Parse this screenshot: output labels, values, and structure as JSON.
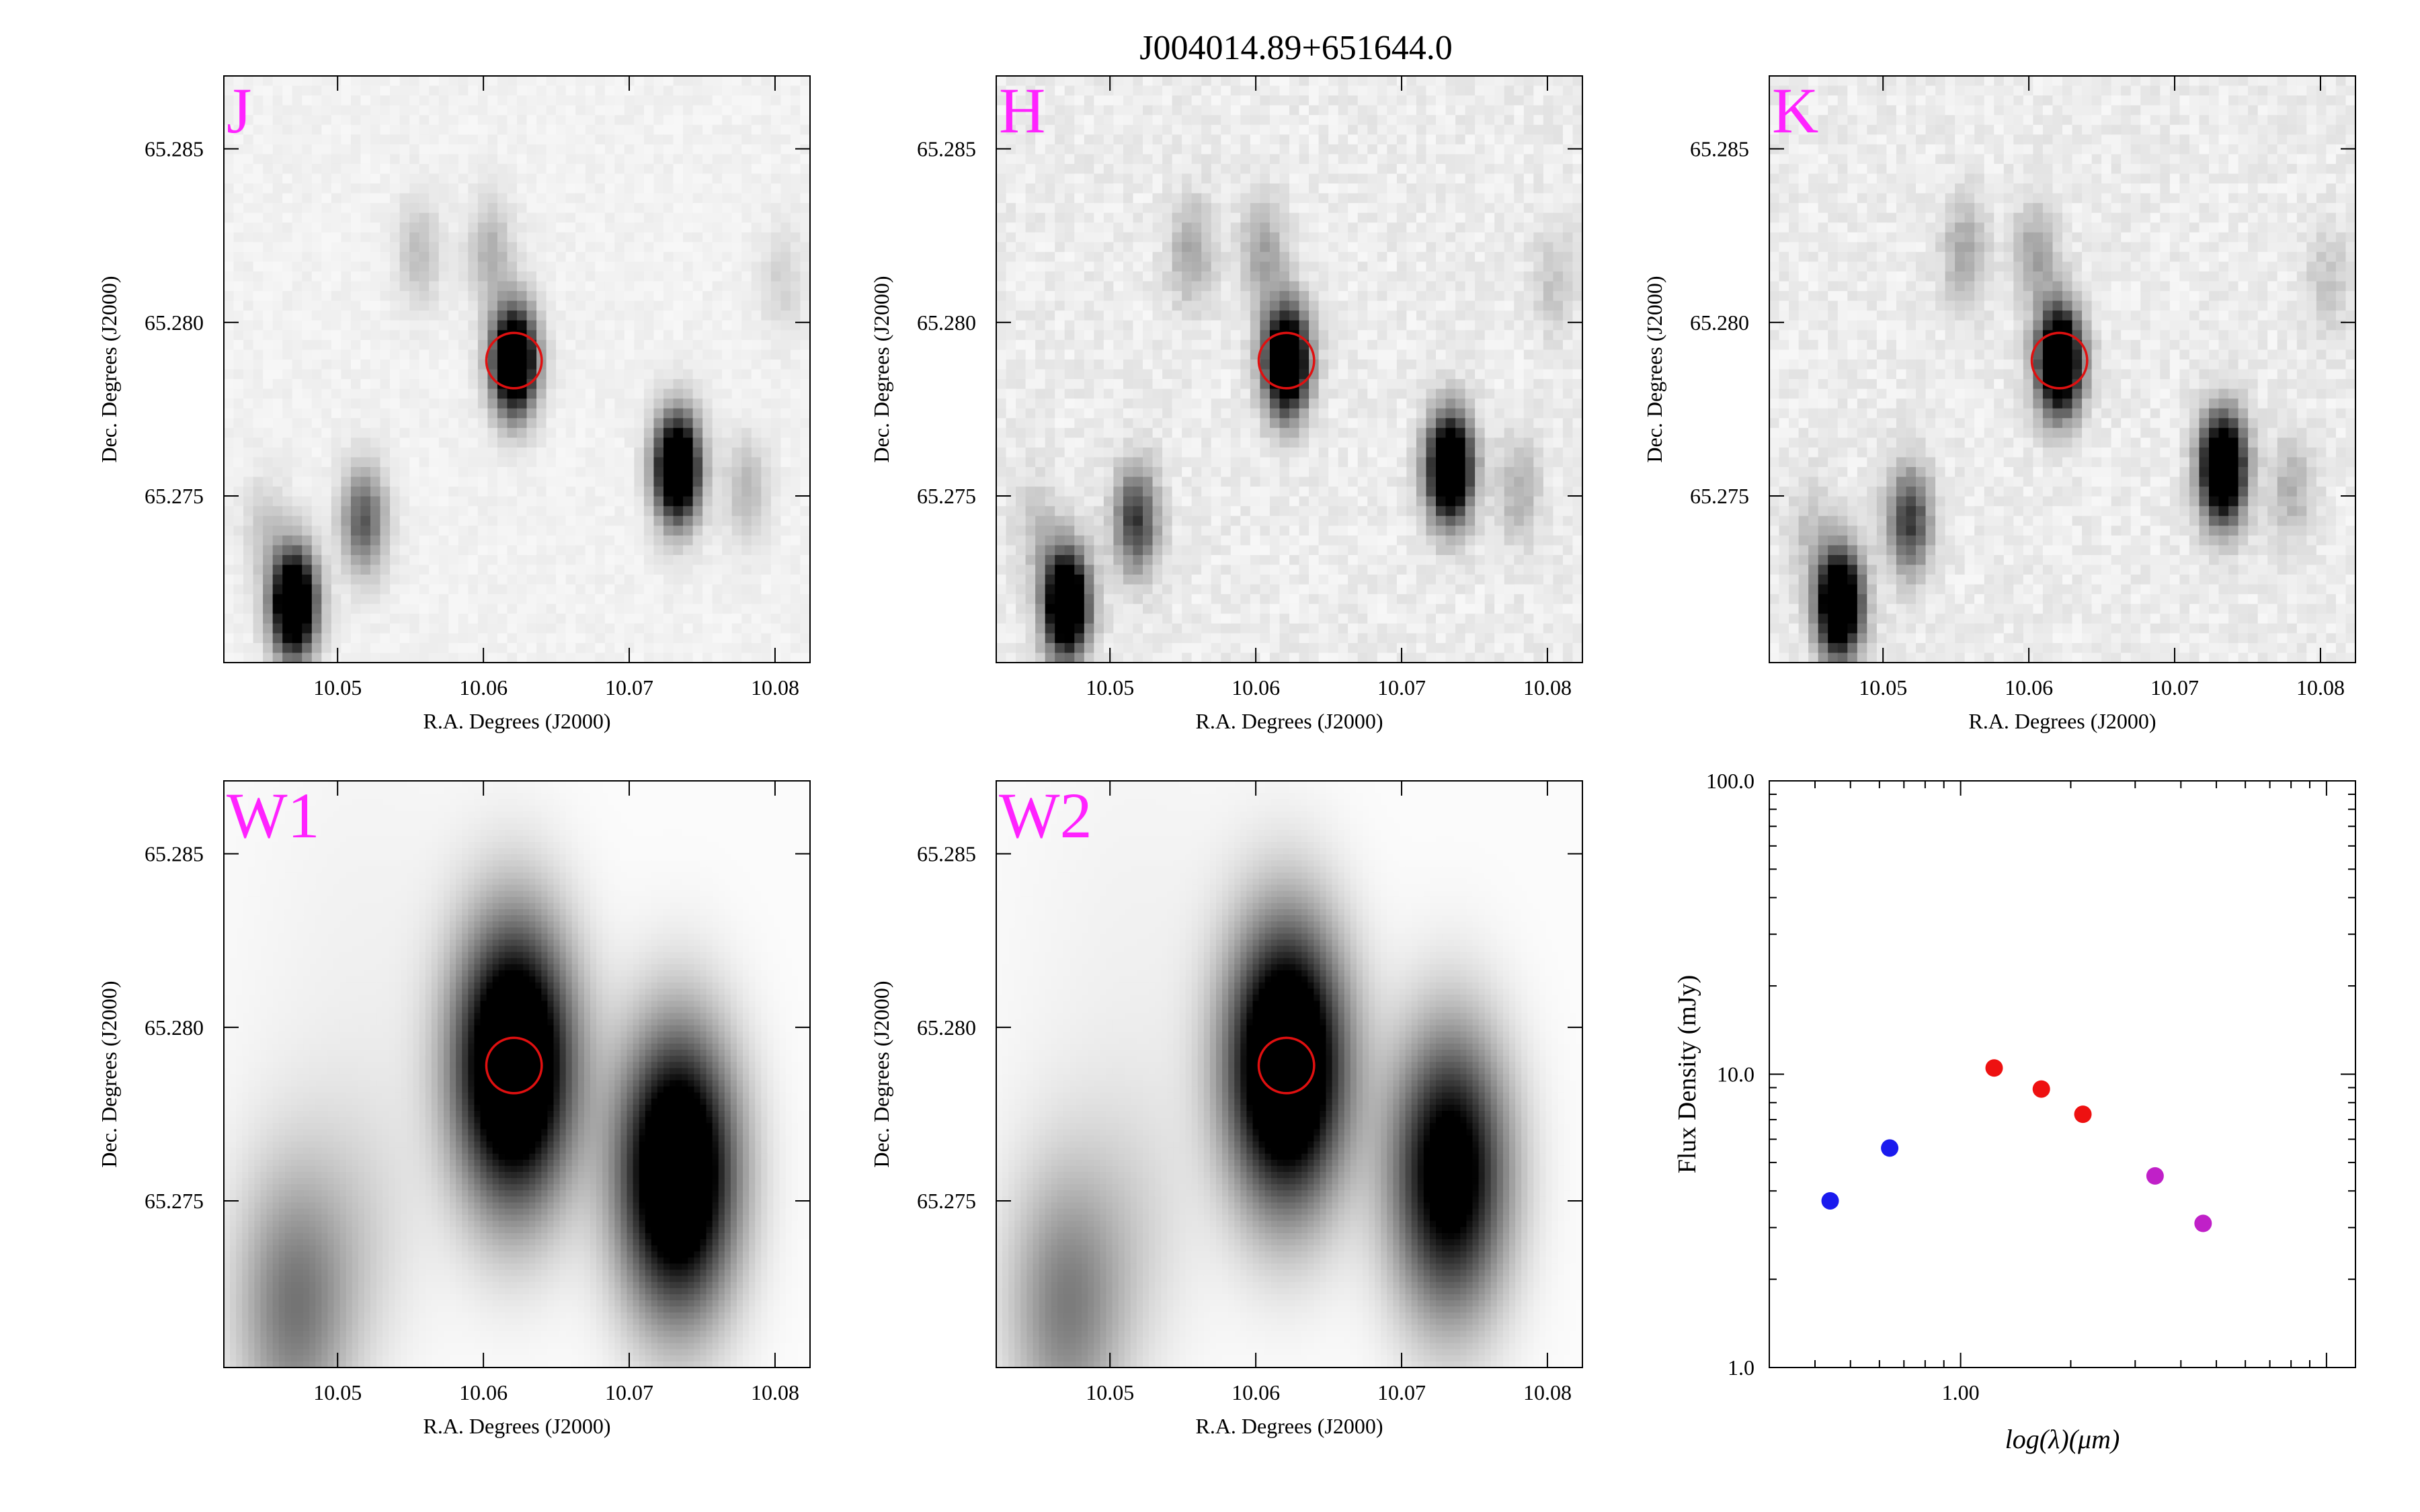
{
  "figure_title": "J004014.89+651644.0",
  "colors": {
    "band_label": "#ff22ff",
    "aperture": "#e01010",
    "sed_blue": "#1a1aee",
    "sed_red": "#ee1111",
    "sed_magenta": "#c020c8"
  },
  "chart_data": [
    {
      "type": "heatmap",
      "band": "J",
      "xlabel": "R.A. Degrees (J2000)",
      "ylabel": "Dec. Degrees (J2000)",
      "xlim": [
        10.0422,
        10.0824
      ],
      "ylim": [
        65.2702,
        65.2871
      ],
      "xticks": [
        "10.05",
        "10.06",
        "10.07",
        "10.08"
      ],
      "yticks": [
        "65.275",
        "65.280",
        "65.285"
      ],
      "target": {
        "ra": 10.0621,
        "dec": 65.2789,
        "aperture_radius_deg": 0.0019
      },
      "sources": [
        {
          "ra": 10.0621,
          "dec": 65.2789,
          "peak": 1.0
        },
        {
          "ra": 10.0733,
          "dec": 65.2758,
          "peak": 1.0
        },
        {
          "ra": 10.047,
          "dec": 65.2719,
          "peak": 1.0
        },
        {
          "ra": 10.0518,
          "dec": 65.2743,
          "peak": 0.38
        },
        {
          "ra": 10.0556,
          "dec": 65.282,
          "peak": 0.13
        },
        {
          "ra": 10.0605,
          "dec": 65.282,
          "peak": 0.16
        },
        {
          "ra": 10.078,
          "dec": 65.2752,
          "peak": 0.14
        },
        {
          "ra": 10.045,
          "dec": 65.274,
          "peak": 0.1
        },
        {
          "ra": 10.0805,
          "dec": 65.2812,
          "peak": 0.08
        }
      ]
    },
    {
      "type": "heatmap",
      "band": "H",
      "xlabel": "R.A. Degrees (J2000)",
      "ylabel": "Dec. Degrees (J2000)",
      "xlim": [
        10.0422,
        10.0824
      ],
      "ylim": [
        65.2702,
        65.2871
      ],
      "xticks": [
        "10.05",
        "10.06",
        "10.07",
        "10.08"
      ],
      "yticks": [
        "65.275",
        "65.280",
        "65.285"
      ],
      "target": {
        "ra": 10.0621,
        "dec": 65.2789,
        "aperture_radius_deg": 0.0019
      },
      "sources": [
        {
          "ra": 10.0621,
          "dec": 65.2789,
          "peak": 1.0
        },
        {
          "ra": 10.0733,
          "dec": 65.2758,
          "peak": 1.0
        },
        {
          "ra": 10.047,
          "dec": 65.2719,
          "peak": 1.0
        },
        {
          "ra": 10.0518,
          "dec": 65.2743,
          "peak": 0.45
        },
        {
          "ra": 10.0556,
          "dec": 65.282,
          "peak": 0.18
        },
        {
          "ra": 10.0605,
          "dec": 65.282,
          "peak": 0.18
        },
        {
          "ra": 10.078,
          "dec": 65.2752,
          "peak": 0.15
        },
        {
          "ra": 10.045,
          "dec": 65.274,
          "peak": 0.1
        },
        {
          "ra": 10.0805,
          "dec": 65.2812,
          "peak": 0.1
        }
      ]
    },
    {
      "type": "heatmap",
      "band": "K",
      "xlabel": "R.A. Degrees (J2000)",
      "ylabel": "Dec. Degrees (J2000)",
      "xlim": [
        10.0422,
        10.0824
      ],
      "ylim": [
        65.2702,
        65.2871
      ],
      "xticks": [
        "10.05",
        "10.06",
        "10.07",
        "10.08"
      ],
      "yticks": [
        "65.275",
        "65.280",
        "65.285"
      ],
      "target": {
        "ra": 10.0621,
        "dec": 65.2789,
        "aperture_radius_deg": 0.0019
      },
      "sources": [
        {
          "ra": 10.0621,
          "dec": 65.2789,
          "peak": 1.0
        },
        {
          "ra": 10.0733,
          "dec": 65.2758,
          "peak": 1.0
        },
        {
          "ra": 10.047,
          "dec": 65.2719,
          "peak": 1.0
        },
        {
          "ra": 10.0518,
          "dec": 65.2743,
          "peak": 0.45
        },
        {
          "ra": 10.0556,
          "dec": 65.282,
          "peak": 0.18
        },
        {
          "ra": 10.0605,
          "dec": 65.282,
          "peak": 0.18
        },
        {
          "ra": 10.078,
          "dec": 65.2752,
          "peak": 0.15
        },
        {
          "ra": 10.045,
          "dec": 65.274,
          "peak": 0.1
        },
        {
          "ra": 10.0805,
          "dec": 65.2812,
          "peak": 0.1
        }
      ]
    },
    {
      "type": "heatmap",
      "band": "W1",
      "xlabel": "R.A. Degrees (J2000)",
      "ylabel": "Dec. Degrees (J2000)",
      "xlim": [
        10.0422,
        10.0824
      ],
      "ylim": [
        65.2702,
        65.2871
      ],
      "xticks": [
        "10.05",
        "10.06",
        "10.07",
        "10.08"
      ],
      "yticks": [
        "65.275",
        "65.280",
        "65.285"
      ],
      "target": {
        "ra": 10.0621,
        "dec": 65.2789,
        "aperture_radius_deg": 0.0019
      },
      "sources": [
        {
          "ra": 10.0621,
          "dec": 65.2789,
          "peak": 1.0
        },
        {
          "ra": 10.0733,
          "dec": 65.2758,
          "peak": 0.95
        },
        {
          "ra": 10.047,
          "dec": 65.2719,
          "peak": 0.3
        },
        {
          "ra": 10.0518,
          "dec": 65.2743,
          "peak": 0.06
        }
      ]
    },
    {
      "type": "heatmap",
      "band": "W2",
      "xlabel": "R.A. Degrees (J2000)",
      "ylabel": "Dec. Degrees (J2000)",
      "xlim": [
        10.0422,
        10.0824
      ],
      "ylim": [
        65.2702,
        65.2871
      ],
      "xticks": [
        "10.05",
        "10.06",
        "10.07",
        "10.08"
      ],
      "yticks": [
        "65.275",
        "65.280",
        "65.285"
      ],
      "target": {
        "ra": 10.0621,
        "dec": 65.2789,
        "aperture_radius_deg": 0.0019
      },
      "sources": [
        {
          "ra": 10.0621,
          "dec": 65.2789,
          "peak": 1.0
        },
        {
          "ra": 10.0733,
          "dec": 65.2758,
          "peak": 0.75
        },
        {
          "ra": 10.047,
          "dec": 65.2719,
          "peak": 0.28
        },
        {
          "ra": 10.0518,
          "dec": 65.2743,
          "peak": 0.06
        }
      ]
    },
    {
      "type": "scatter",
      "xlabel": "log(λ)(μm)",
      "ylabel": "Flux Density (mJy)",
      "xscale": "log",
      "yscale": "log",
      "xlim": [
        0.3,
        12
      ],
      "ylim": [
        1.0,
        100.0
      ],
      "xticks": [
        "1.00"
      ],
      "yticks": [
        "1.0",
        "10.0",
        "100.0"
      ],
      "series": [
        {
          "color_key": "sed_blue",
          "x": [
            0.44,
            0.64
          ],
          "y": [
            3.7,
            5.6
          ]
        },
        {
          "color_key": "sed_red",
          "x": [
            1.235,
            1.662,
            2.159
          ],
          "y": [
            10.5,
            8.9,
            7.3
          ]
        },
        {
          "color_key": "sed_magenta",
          "x": [
            3.4,
            4.6
          ],
          "y": [
            4.5,
            3.1
          ]
        }
      ]
    }
  ]
}
